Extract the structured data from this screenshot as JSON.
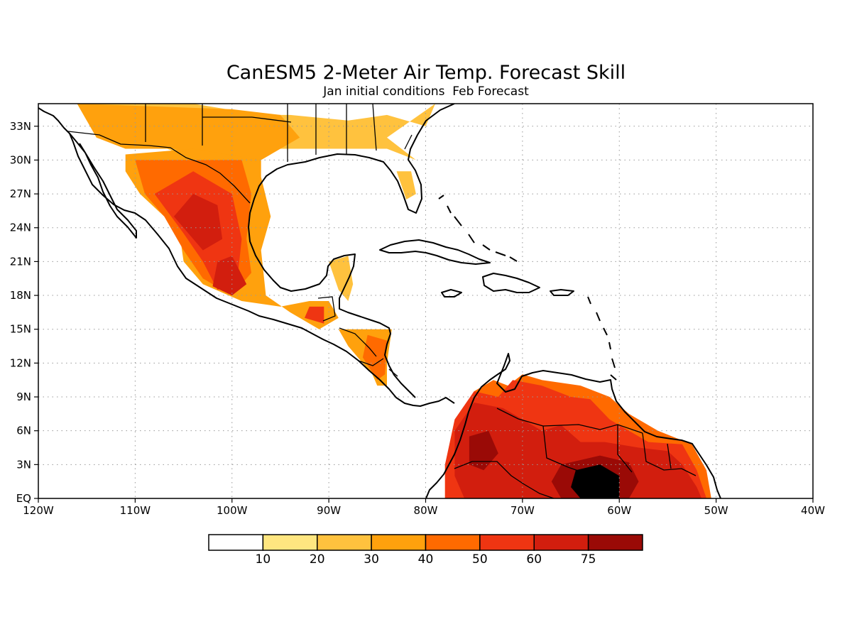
{
  "title": "CanESM5 2-Meter Air Temp. Forecast Skill",
  "subtitle": "Jan initial conditions  Feb Forecast",
  "map": {
    "lon_range": [
      -120,
      -40
    ],
    "lat_range": [
      0,
      35
    ],
    "lon_ticks": [
      {
        "value": -120,
        "label": "120W"
      },
      {
        "value": -110,
        "label": "110W"
      },
      {
        "value": -100,
        "label": "100W"
      },
      {
        "value": -90,
        "label": "90W"
      },
      {
        "value": -80,
        "label": "80W"
      },
      {
        "value": -70,
        "label": "70W"
      },
      {
        "value": -60,
        "label": "60W"
      },
      {
        "value": -50,
        "label": "50W"
      },
      {
        "value": -40,
        "label": "40W"
      }
    ],
    "lat_ticks": [
      {
        "value": 0,
        "label": "EQ"
      },
      {
        "value": 3,
        "label": "3N"
      },
      {
        "value": 6,
        "label": "6N"
      },
      {
        "value": 9,
        "label": "9N"
      },
      {
        "value": 12,
        "label": "12N"
      },
      {
        "value": 15,
        "label": "15N"
      },
      {
        "value": 18,
        "label": "18N"
      },
      {
        "value": 21,
        "label": "21N"
      },
      {
        "value": 24,
        "label": "24N"
      },
      {
        "value": 27,
        "label": "27N"
      },
      {
        "value": 30,
        "label": "30N"
      },
      {
        "value": 33,
        "label": "33N"
      }
    ],
    "grid": true
  },
  "colorbar": {
    "colors": [
      "#ffffff",
      "#ffe680",
      "#ffc23e",
      "#ffa10d",
      "#ff6a00",
      "#ef3512",
      "#d21e0e",
      "#9a0a06"
    ],
    "labels": [
      "10",
      "20",
      "30",
      "40",
      "50",
      "60",
      "75"
    ]
  },
  "chart_data": {
    "type": "heatmap",
    "title": "CanESM5 2-Meter Air Temp. Forecast Skill",
    "subtitle": "Jan initial conditions  Feb Forecast",
    "x_range": [
      -120,
      -40
    ],
    "y_range": [
      0,
      35
    ],
    "levels": [
      10,
      20,
      30,
      40,
      50,
      60,
      75
    ],
    "regions": [
      {
        "level_index": 1,
        "poly": [
          [
            -116,
            35
          ],
          [
            -104,
            35
          ],
          [
            -97,
            34
          ],
          [
            -94,
            34
          ],
          [
            -88,
            33.5
          ],
          [
            -84,
            34
          ],
          [
            -80,
            33
          ],
          [
            -79,
            35
          ],
          [
            -84,
            32
          ],
          [
            -81,
            30
          ],
          [
            -84,
            31
          ],
          [
            -89,
            31
          ],
          [
            -95,
            31
          ],
          [
            -98,
            30
          ],
          [
            -101,
            31
          ],
          [
            -104,
            30
          ],
          [
            -108,
            31.5
          ],
          [
            -112,
            31.5
          ],
          [
            -115,
            33.5
          ]
        ]
      },
      {
        "level_index": 1,
        "poly": [
          [
            -83,
            29
          ],
          [
            -81.5,
            29
          ],
          [
            -81,
            27
          ],
          [
            -82,
            26.5
          ]
        ]
      },
      {
        "level_index": 1,
        "poly": [
          [
            -90,
            21
          ],
          [
            -88,
            21.5
          ],
          [
            -87.5,
            19
          ],
          [
            -88,
            17.5
          ],
          [
            -89,
            18.5
          ]
        ]
      },
      {
        "level_index": 2,
        "poly": [
          [
            -116,
            35
          ],
          [
            -100,
            34.5
          ],
          [
            -95,
            34
          ],
          [
            -93,
            32
          ],
          [
            -97,
            30
          ],
          [
            -101,
            29
          ],
          [
            -106,
            31
          ],
          [
            -111,
            31
          ],
          [
            -114,
            32
          ]
        ]
      },
      {
        "level_index": 2,
        "poly": [
          [
            -111,
            30.5
          ],
          [
            -104,
            31
          ],
          [
            -97,
            30
          ],
          [
            -97,
            28.5
          ],
          [
            -96,
            25
          ],
          [
            -97,
            22
          ],
          [
            -96.5,
            18
          ],
          [
            -94,
            16.5
          ],
          [
            -91,
            15
          ],
          [
            -89,
            16
          ],
          [
            -90,
            17.5
          ],
          [
            -92,
            17.5
          ],
          [
            -95,
            17
          ],
          [
            -99,
            17.5
          ],
          [
            -103,
            19
          ],
          [
            -105,
            21
          ],
          [
            -105.5,
            24
          ],
          [
            -107,
            25
          ],
          [
            -109.5,
            27
          ],
          [
            -111,
            29
          ]
        ]
      },
      {
        "level_index": 2,
        "poly": [
          [
            -89,
            15
          ],
          [
            -86,
            15
          ],
          [
            -83.5,
            15
          ],
          [
            -84,
            12
          ],
          [
            -84,
            10
          ],
          [
            -85,
            10
          ],
          [
            -85.5,
            11
          ],
          [
            -87,
            12.5
          ],
          [
            -88,
            13.5
          ]
        ]
      },
      {
        "level_index": 3,
        "poly": [
          [
            -110,
            30
          ],
          [
            -104,
            30
          ],
          [
            -99,
            30
          ],
          [
            -98,
            27
          ],
          [
            -98.5,
            23
          ],
          [
            -98,
            20
          ],
          [
            -100,
            18
          ],
          [
            -103,
            19.5
          ],
          [
            -105,
            22
          ],
          [
            -107,
            25
          ],
          [
            -109,
            27
          ]
        ]
      },
      {
        "level_index": 3,
        "poly": [
          [
            -86,
            14.5
          ],
          [
            -84,
            14
          ],
          [
            -84.2,
            11
          ],
          [
            -85,
            10.5
          ],
          [
            -86.5,
            12.5
          ]
        ]
      },
      {
        "level_index": 3,
        "poly": [
          [
            -78,
            0
          ],
          [
            -78,
            3
          ],
          [
            -76.5,
            7.5
          ],
          [
            -75,
            9.5
          ],
          [
            -73,
            10.5
          ],
          [
            -71.5,
            10
          ],
          [
            -70,
            11
          ],
          [
            -68,
            10.5
          ],
          [
            -64,
            10
          ],
          [
            -61,
            9
          ],
          [
            -59,
            7.5
          ],
          [
            -56,
            6
          ],
          [
            -52.5,
            4.8
          ],
          [
            -51,
            2.5
          ],
          [
            -50.5,
            0
          ]
        ]
      },
      {
        "level_index": 4,
        "poly": [
          [
            -108,
            27
          ],
          [
            -104,
            29
          ],
          [
            -100,
            27
          ],
          [
            -99,
            23
          ],
          [
            -99.5,
            19
          ],
          [
            -101.5,
            18.5
          ],
          [
            -103,
            21
          ],
          [
            -105,
            23.5
          ]
        ]
      },
      {
        "level_index": 4,
        "poly": [
          [
            -92,
            17
          ],
          [
            -90.5,
            17
          ],
          [
            -90.5,
            15.5
          ],
          [
            -92.5,
            16
          ]
        ]
      },
      {
        "level_index": 4,
        "poly": [
          [
            -77,
            7
          ],
          [
            -75,
            9.5
          ],
          [
            -72.5,
            9
          ],
          [
            -71,
            10.5
          ],
          [
            -68,
            10
          ],
          [
            -65,
            9
          ],
          [
            -63,
            8.8
          ],
          [
            -61,
            7
          ],
          [
            -59,
            6
          ],
          [
            -57,
            5
          ],
          [
            -53.5,
            4.8
          ],
          [
            -52,
            2.5
          ],
          [
            -51,
            0
          ],
          [
            -78,
            0
          ],
          [
            -78,
            3
          ]
        ]
      },
      {
        "level_index": 5,
        "poly": [
          [
            -106,
            25
          ],
          [
            -104,
            27
          ],
          [
            -101.5,
            26
          ],
          [
            -101,
            23
          ],
          [
            -103,
            22
          ]
        ]
      },
      {
        "level_index": 5,
        "poly": [
          [
            -101.5,
            21
          ],
          [
            -100,
            21.5
          ],
          [
            -98.5,
            19
          ],
          [
            -100,
            18
          ],
          [
            -102,
            18.8
          ]
        ]
      },
      {
        "level_index": 5,
        "poly": [
          [
            -77,
            6
          ],
          [
            -75,
            8.5
          ],
          [
            -72,
            8
          ],
          [
            -70,
            7
          ],
          [
            -68,
            6
          ],
          [
            -66,
            6.5
          ],
          [
            -64,
            5
          ],
          [
            -61.5,
            5
          ],
          [
            -58,
            4.5
          ],
          [
            -55,
            4.2
          ],
          [
            -53.5,
            3
          ],
          [
            -52,
            1
          ],
          [
            -51.5,
            0
          ],
          [
            -76,
            0
          ],
          [
            -77,
            2
          ]
        ]
      },
      {
        "level_index": 6,
        "poly": [
          [
            -75.5,
            5.5
          ],
          [
            -73.5,
            6
          ],
          [
            -72.5,
            4
          ],
          [
            -74,
            2.5
          ],
          [
            -75.5,
            3
          ]
        ]
      },
      {
        "level_index": 6,
        "poly": [
          [
            -66,
            3
          ],
          [
            -62,
            3.8
          ],
          [
            -59,
            3.2
          ],
          [
            -58,
            1.5
          ],
          [
            -59,
            0
          ],
          [
            -66,
            0
          ],
          [
            -67,
            1.5
          ]
        ]
      },
      {
        "level_index": 7,
        "poly": [
          [
            -64.5,
            2.5
          ],
          [
            -62,
            3
          ],
          [
            -60,
            2
          ],
          [
            -60,
            0
          ],
          [
            -64,
            0
          ],
          [
            -65,
            1
          ]
        ]
      }
    ]
  }
}
